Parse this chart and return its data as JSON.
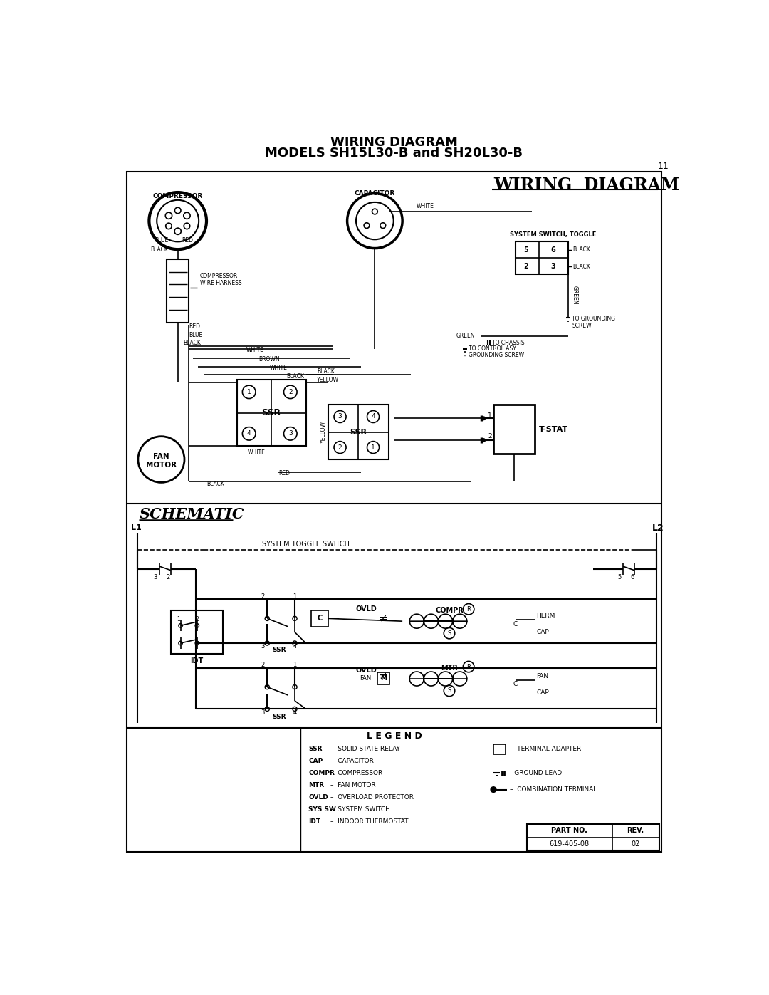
{
  "title_line1": "WIRING DIAGRAM",
  "title_line2": "MODELS SH15L30-B and SH20L30-B",
  "page_number": "11",
  "part_no": "619-405-08",
  "rev": "02",
  "background": "#ffffff",
  "text_color": "#000000",
  "wiring_diagram_label": "WIRING  DIAGRAM",
  "schematic_label": "SCHEMATIC",
  "legend_label": "L E G E N D"
}
